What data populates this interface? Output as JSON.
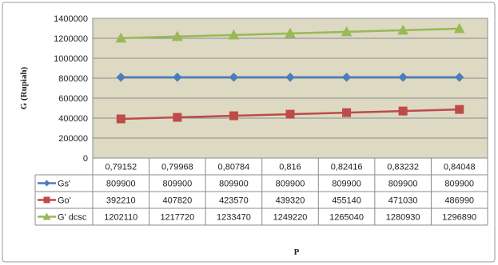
{
  "chart_data": {
    "type": "line",
    "x": [
      "0,79152",
      "0,79968",
      "0,80784",
      "0,816",
      "0,82416",
      "0,83232",
      "0,84048"
    ],
    "xlabel": "P",
    "ylabel": "G (Rupiah)",
    "ylim": [
      0,
      1400000
    ],
    "yticks": [
      "0",
      "200000",
      "400000",
      "600000",
      "800000",
      "1000000",
      "1200000",
      "1400000"
    ],
    "grid": true,
    "legend": "data-table-left",
    "series": [
      {
        "name": "Gs'",
        "color": "#4a7ebb",
        "marker": "diamond",
        "values": [
          809900,
          809900,
          809900,
          809900,
          809900,
          809900,
          809900
        ],
        "labels": [
          "809900",
          "809900",
          "809900",
          "809900",
          "809900",
          "809900",
          "809900"
        ]
      },
      {
        "name": "Go'",
        "color": "#be4b48",
        "marker": "square",
        "values": [
          392210,
          407820,
          423570,
          439320,
          455140,
          471030,
          486990
        ],
        "labels": [
          "392210",
          "407820",
          "423570",
          "439320",
          "455140",
          "471030",
          "486990"
        ]
      },
      {
        "name": "G' dcsc",
        "color": "#98b954",
        "marker": "triangle",
        "values": [
          1202110,
          1217720,
          1233470,
          1249220,
          1265040,
          1280930,
          1296890
        ],
        "labels": [
          "1202110",
          "1217720",
          "1233470",
          "1249220",
          "1265040",
          "1280930",
          "1296890"
        ]
      }
    ]
  }
}
